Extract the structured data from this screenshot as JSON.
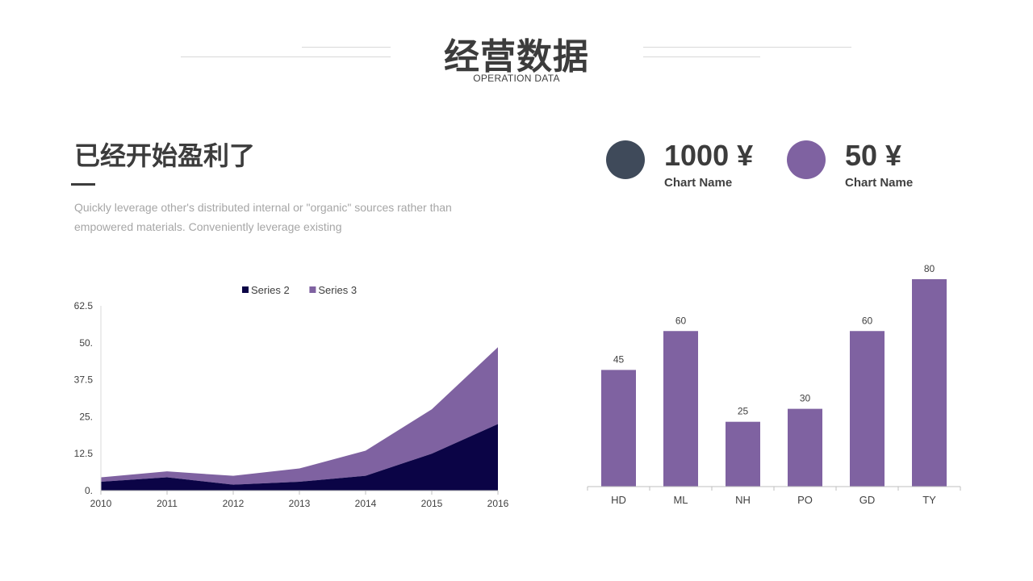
{
  "header": {
    "title": "经营数据",
    "subtitle": "OPERATION DATA"
  },
  "section": {
    "heading": "已经开始盈利了",
    "description": "Quickly leverage other's distributed internal or \"organic\" sources rather than empowered materials. Conveniently leverage existing"
  },
  "kpis": [
    {
      "value": "1000 ¥",
      "label": "Chart Name",
      "color": "#3f4a5a"
    },
    {
      "value": "50 ¥",
      "label": "Chart Name",
      "color": "#7f62a1"
    }
  ],
  "chart_data": [
    {
      "type": "area",
      "stacked": true,
      "x": [
        "2010",
        "2011",
        "2012",
        "2013",
        "2014",
        "2015",
        "2016"
      ],
      "series": [
        {
          "name": "Series 2",
          "color": "#0b0446",
          "values": [
            3,
            4.5,
            2,
            3,
            5,
            12.5,
            22.5
          ]
        },
        {
          "name": "Series 3",
          "color": "#7f62a1",
          "values": [
            1.5,
            2,
            3,
            4.5,
            8.5,
            15,
            26
          ]
        }
      ],
      "ylim": [
        0,
        62.5
      ],
      "yticks": [
        "0.",
        "12.5",
        "25.",
        "37.5",
        "50.",
        "62.5"
      ],
      "legend": "top",
      "grid": false
    },
    {
      "type": "bar",
      "categories": [
        "HD",
        "ML",
        "NH",
        "PO",
        "GD",
        "TY"
      ],
      "values": [
        45,
        60,
        25,
        30,
        60,
        80
      ],
      "color": "#7f62a1",
      "ylim": [
        0,
        80
      ],
      "data_labels": true,
      "grid": false
    }
  ]
}
